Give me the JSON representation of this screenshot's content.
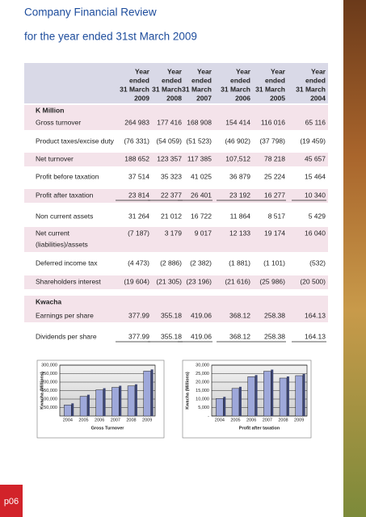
{
  "header": {
    "title": "Company Financial Review",
    "subtitle": "for the year ended 31st March 2009"
  },
  "table": {
    "columns": [
      [
        "Year",
        "ended",
        "31 March",
        "2009"
      ],
      [
        "Year",
        "ended",
        "31 March",
        "2008"
      ],
      [
        "Year",
        "ended",
        "31 March",
        "2007"
      ],
      [
        "Year",
        "ended",
        "31 March",
        "2006"
      ],
      [
        "Year",
        "ended",
        "31 March",
        "2005"
      ],
      [
        "Year",
        "ended",
        "31 March",
        "2004"
      ]
    ],
    "rows": [
      {
        "heading": "K Million"
      },
      {
        "label": [
          "Gross turnover"
        ],
        "values": [
          "264 983",
          "177 416",
          "168 908",
          "154 414",
          "116 016",
          "65 116"
        ]
      },
      {
        "label": [
          "Product taxes/excise duty"
        ],
        "values": [
          "(76 331)",
          "(54 059)",
          "(51 523)",
          "(46 902)",
          "(37 798)",
          "(19 459)"
        ]
      },
      {
        "label": [
          "Net turnover"
        ],
        "values": [
          "188 652",
          "123 357",
          "117 385",
          "107,512",
          "78 218",
          "45 657"
        ]
      },
      {
        "label": [
          "Profit before taxation"
        ],
        "values": [
          "37 514",
          "35 323",
          "41 025",
          "36 879",
          "25 224",
          "15 464"
        ]
      },
      {
        "label": [
          "Profit after taxation"
        ],
        "values": [
          "23 814",
          "22 377",
          "26 401",
          "23 192",
          "16 277",
          "10 340"
        ]
      },
      {
        "label": [
          "Non current assets"
        ],
        "values": [
          "31 264",
          "21 012",
          "16 722",
          "11 864",
          "8 517",
          "5 429"
        ]
      },
      {
        "label": [
          "Net current",
          "(liabilities)/assets"
        ],
        "values": [
          "(7 187)",
          "3 179",
          "9 017",
          "12 133",
          "19 174",
          "16 040"
        ]
      },
      {
        "label": [
          "Deferred income tax"
        ],
        "values": [
          "(4 473)",
          "(2 886)",
          "(2 382)",
          "(1 881)",
          "(1 101)",
          "(532)"
        ]
      },
      {
        "label": [
          "Shareholders interest"
        ],
        "values": [
          "(19 604)",
          "(21 305)",
          "(23 196)",
          "(21 616)",
          "(25 986)",
          "(20 500)"
        ]
      },
      {
        "heading": "Kwacha"
      },
      {
        "label": [
          "Earnings per share"
        ],
        "values": [
          "377.99",
          "355.18",
          "419.06",
          "368.12",
          "258.38",
          "164.13"
        ]
      },
      {
        "label": [
          "Dividends per share"
        ],
        "values": [
          "377.99",
          "355.18",
          "419.06",
          "368.12",
          "258.38",
          "164.13"
        ]
      }
    ]
  },
  "chart_data": [
    {
      "type": "bar",
      "x_label": "Gross Turnover",
      "y_label": "Kwacha (Millions)",
      "categories": [
        "2004",
        "2005",
        "2006",
        "2007",
        "2008",
        "2009"
      ],
      "values": [
        65116,
        116016,
        154414,
        168908,
        177416,
        264983
      ],
      "color": "#9ea8da",
      "ylim": [
        0,
        300000
      ],
      "yticks": [
        {
          "value": 50000,
          "label": "50,000"
        },
        {
          "value": 100000,
          "label": "100,000"
        },
        {
          "value": 150000,
          "label": "150,000"
        },
        {
          "value": 200000,
          "label": "200,000"
        },
        {
          "value": 250000,
          "label": "250,000"
        },
        {
          "value": 300000,
          "label": "300,000"
        }
      ],
      "grid": true
    },
    {
      "type": "bar",
      "x_label": "Profit after taxation",
      "y_label": "Kwacha (Millions)",
      "categories": [
        "2004",
        "2005",
        "2006",
        "2007",
        "2008",
        "2009"
      ],
      "values": [
        10340,
        16277,
        23192,
        26401,
        22377,
        23814
      ],
      "color": "#9ea8da",
      "ylim": [
        0,
        30000
      ],
      "yticks": [
        {
          "value": 0,
          "label": "-"
        },
        {
          "value": 5000,
          "label": "5,000"
        },
        {
          "value": 10000,
          "label": "10,000"
        },
        {
          "value": 15000,
          "label": "15,000"
        },
        {
          "value": 20000,
          "label": "20,000"
        },
        {
          "value": 25000,
          "label": "25,000"
        },
        {
          "value": 30000,
          "label": "30,000"
        }
      ],
      "grid": true
    }
  ],
  "page_number": "p06"
}
